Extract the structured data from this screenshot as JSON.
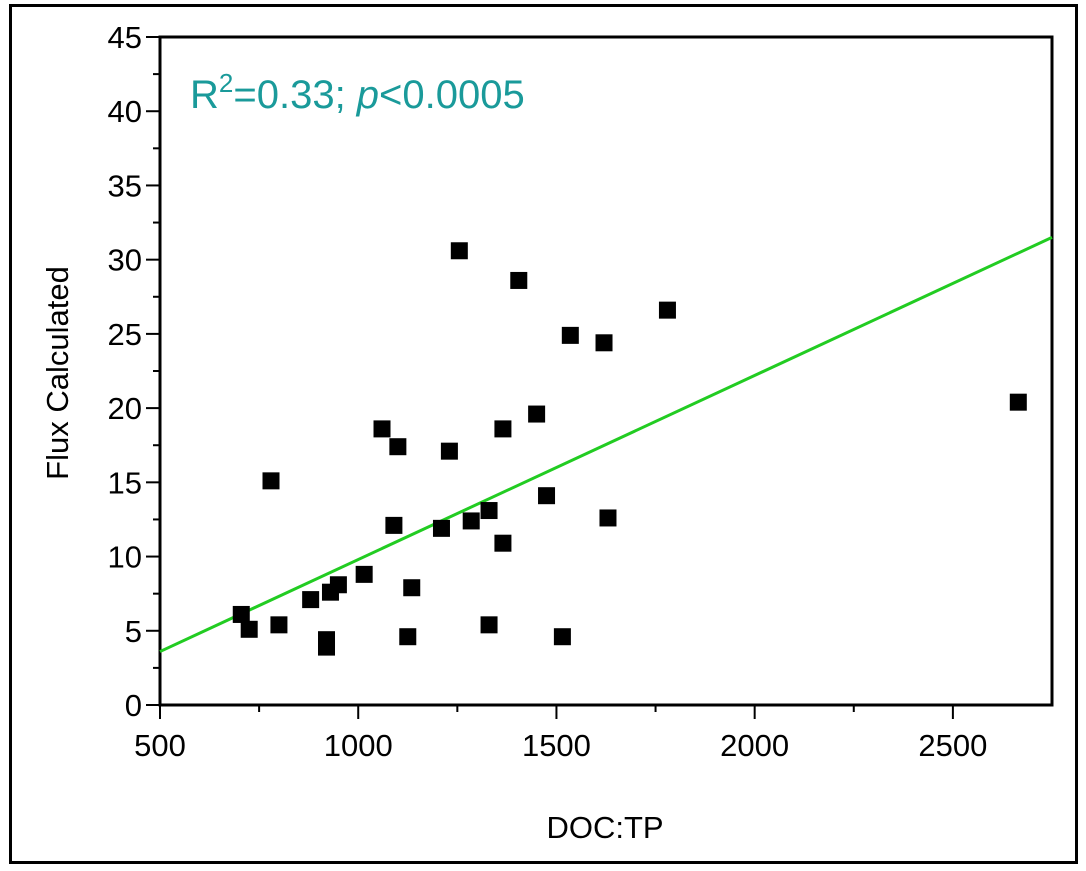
{
  "chart_data": {
    "type": "scatter",
    "xlabel": "DOC:TP",
    "ylabel": "Flux Calculated",
    "xlim": [
      500,
      2750
    ],
    "ylim": [
      0,
      45
    ],
    "xticks": [
      500,
      1000,
      1500,
      2000,
      2500
    ],
    "yticks": [
      0,
      5,
      10,
      15,
      20,
      25,
      30,
      35,
      40,
      45
    ],
    "grid": false,
    "annotation": {
      "r2_prefix": "R",
      "r2_sup": "2",
      "r2_value": "=0.33; ",
      "p_symbol": "p",
      "p_value": "<0.0005"
    },
    "colors": {
      "points": "#000000",
      "fit_line": "#22cc22",
      "annotation": "#1a9a9a"
    },
    "series": [
      {
        "points": [
          [
            705,
            6.1
          ],
          [
            725,
            5.1
          ],
          [
            780,
            15.1
          ],
          [
            800,
            5.4
          ],
          [
            880,
            7.1
          ],
          [
            920,
            4.4
          ],
          [
            920,
            3.9
          ],
          [
            930,
            7.6
          ],
          [
            950,
            8.1
          ],
          [
            1015,
            8.8
          ],
          [
            1060,
            18.6
          ],
          [
            1090,
            12.1
          ],
          [
            1100,
            17.4
          ],
          [
            1125,
            4.6
          ],
          [
            1135,
            7.9
          ],
          [
            1210,
            11.9
          ],
          [
            1230,
            17.1
          ],
          [
            1255,
            30.6
          ],
          [
            1285,
            12.4
          ],
          [
            1330,
            13.1
          ],
          [
            1330,
            5.4
          ],
          [
            1365,
            18.6
          ],
          [
            1365,
            10.9
          ],
          [
            1405,
            28.6
          ],
          [
            1450,
            19.6
          ],
          [
            1475,
            14.1
          ],
          [
            1515,
            4.6
          ],
          [
            1535,
            24.9
          ],
          [
            1620,
            24.4
          ],
          [
            1630,
            12.6
          ],
          [
            1780,
            26.6
          ],
          [
            2665,
            20.4
          ]
        ]
      }
    ],
    "fit_line": [
      [
        500,
        3.6
      ],
      [
        2750,
        31.5
      ]
    ]
  }
}
